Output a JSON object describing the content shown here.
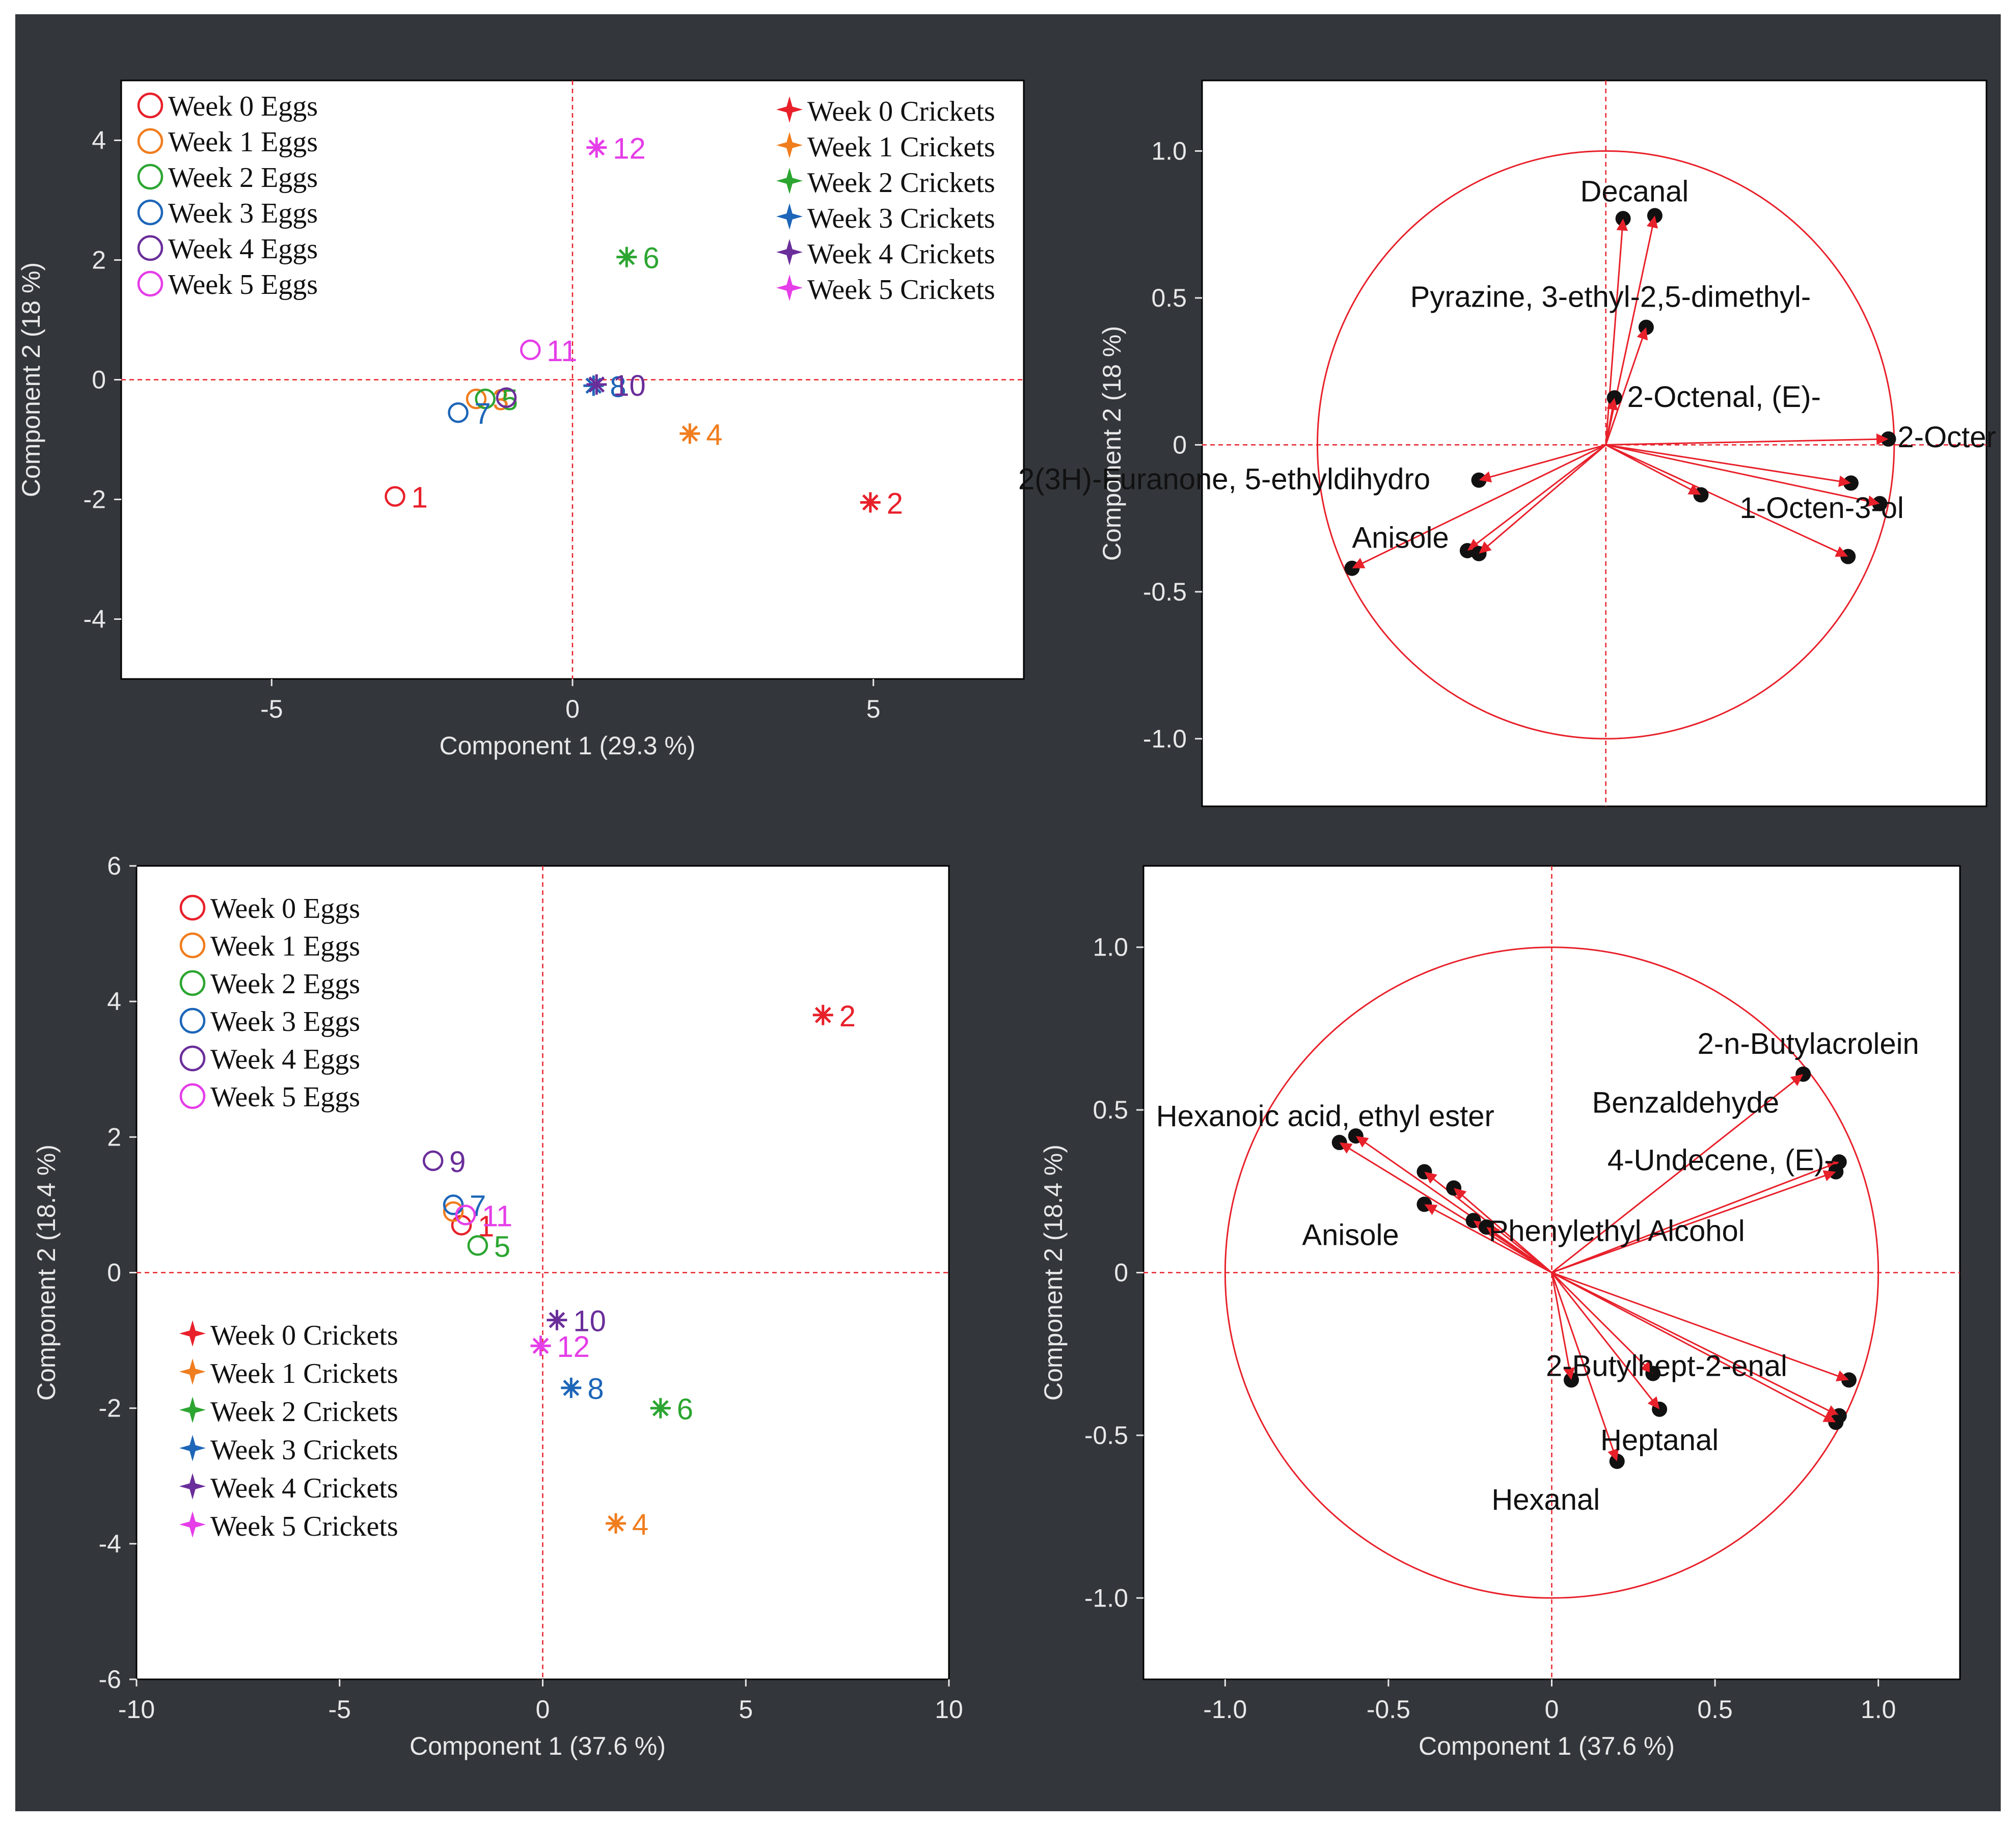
{
  "figure": {
    "background": "#33363b",
    "plot_background": "#ffffff",
    "reference_line_color": "#e8202a",
    "series_colors": {
      "week0": "#e8202a",
      "week1": "#f07d1e",
      "week2": "#2ca531",
      "week3": "#1d66b8",
      "week4": "#6a2e9a",
      "week5": "#e53de8"
    }
  },
  "chart_data": [
    {
      "id": "top-left",
      "type": "scatter",
      "title": "",
      "xlabel": "Component 1  (29.3 %)",
      "ylabel": "Component 2  (18 %)",
      "xlim": [
        -7.5,
        7.5
      ],
      "ylim": [
        -5,
        5
      ],
      "xticks": [
        -5,
        0,
        5
      ],
      "yticks": [
        -4,
        -2,
        0,
        2,
        4
      ],
      "grid": false,
      "reference_lines": {
        "x": 0,
        "y": 0
      },
      "legends": [
        {
          "position": "top-left",
          "marker": "circle",
          "entries": [
            {
              "label": "Week 0 Eggs",
              "series": "week0"
            },
            {
              "label": "Week 1 Eggs",
              "series": "week1"
            },
            {
              "label": "Week 2 Eggs",
              "series": "week2"
            },
            {
              "label": "Week 3 Eggs",
              "series": "week3"
            },
            {
              "label": "Week 4 Eggs",
              "series": "week4"
            },
            {
              "label": "Week 5 Eggs",
              "series": "week5"
            }
          ]
        },
        {
          "position": "top-right",
          "marker": "star",
          "entries": [
            {
              "label": "Week 0 Crickets",
              "series": "week0"
            },
            {
              "label": "Week 1 Crickets",
              "series": "week1"
            },
            {
              "label": "Week 2 Crickets",
              "series": "week2"
            },
            {
              "label": "Week 3 Crickets",
              "series": "week3"
            },
            {
              "label": "Week 4 Crickets",
              "series": "week4"
            },
            {
              "label": "Week 5 Crickets",
              "series": "week5"
            }
          ]
        }
      ],
      "points": [
        {
          "label": "1",
          "x": -2.95,
          "y": -1.95,
          "marker": "circle",
          "series": "week0"
        },
        {
          "label": "3",
          "x": -1.6,
          "y": -0.32,
          "marker": "circle",
          "series": "week1"
        },
        {
          "label": "5",
          "x": -1.45,
          "y": -0.32,
          "marker": "circle",
          "series": "week2"
        },
        {
          "label": "7",
          "x": -1.9,
          "y": -0.55,
          "marker": "circle",
          "series": "week3"
        },
        {
          "label": "9",
          "x": -1.1,
          "y": -0.3,
          "marker": "circle",
          "series": "week4",
          "show_label": false
        },
        {
          "label": "11",
          "x": -0.7,
          "y": 0.5,
          "marker": "circle",
          "series": "week5"
        },
        {
          "label": "2",
          "x": 4.95,
          "y": -2.05,
          "marker": "star",
          "series": "week0"
        },
        {
          "label": "4",
          "x": 1.95,
          "y": -0.9,
          "marker": "star",
          "series": "week1"
        },
        {
          "label": "6",
          "x": 0.9,
          "y": 2.05,
          "marker": "star",
          "series": "week2"
        },
        {
          "label": "8",
          "x": 0.35,
          "y": -0.1,
          "marker": "star",
          "series": "week3"
        },
        {
          "label": "10",
          "x": 0.4,
          "y": -0.08,
          "marker": "star",
          "series": "week4"
        },
        {
          "label": "12",
          "x": 0.4,
          "y": 3.88,
          "marker": "star",
          "series": "week5"
        }
      ]
    },
    {
      "id": "top-right",
      "type": "scatter",
      "title": "",
      "xlabel": "",
      "ylabel": "Component 2  (18 %)",
      "xlim": [
        -1.4,
        1.32
      ],
      "ylim": [
        -1.23,
        1.24
      ],
      "xticks": [],
      "yticks": [
        -1.0,
        -0.5,
        0,
        0.5,
        1.0
      ],
      "ytick_labels": [
        "-1.0",
        "-0.5",
        "0",
        "0.5",
        "1.0"
      ],
      "grid": false,
      "reference_lines": {
        "x": 0,
        "y": 0
      },
      "unit_circle": true,
      "loadings": [
        {
          "x": 0.06,
          "y": 0.77,
          "label": ""
        },
        {
          "x": 0.17,
          "y": 0.78,
          "label": "Decanal"
        },
        {
          "x": 0.14,
          "y": 0.4,
          "label": "Pyrazine, 3-ethyl-2,5-dimethyl-"
        },
        {
          "x": 0.03,
          "y": 0.16,
          "label": "2-Octenal, (E)-"
        },
        {
          "x": 0.98,
          "y": 0.02,
          "label": "2-Octer"
        },
        {
          "x": 0.85,
          "y": -0.13,
          "label": ""
        },
        {
          "x": 0.95,
          "y": -0.2,
          "label": "1-Octen-3-ol"
        },
        {
          "x": 0.84,
          "y": -0.38,
          "label": ""
        },
        {
          "x": 0.33,
          "y": -0.17,
          "label": ""
        },
        {
          "x": -0.44,
          "y": -0.12,
          "label": "2(3H)-Furanone, 5-ethyldihydro"
        },
        {
          "x": -0.48,
          "y": -0.36,
          "label": ""
        },
        {
          "x": -0.44,
          "y": -0.37,
          "label": ""
        },
        {
          "x": -0.88,
          "y": -0.42,
          "label": "Anisole"
        }
      ]
    },
    {
      "id": "bottom-left",
      "type": "scatter",
      "title": "",
      "xlabel": "Component 1  (37.6 %)",
      "ylabel": "Component 2  (18.4 %)",
      "xlim": [
        -10,
        10
      ],
      "ylim": [
        -6,
        6
      ],
      "xticks": [
        -10,
        -5,
        0,
        5,
        10
      ],
      "yticks": [
        -6,
        -4,
        -2,
        0,
        2,
        4,
        6
      ],
      "grid": false,
      "reference_lines": {
        "x": 0,
        "y": 0
      },
      "legends": [
        {
          "position": "top-left",
          "marker": "circle",
          "entries": [
            {
              "label": "Week 0 Eggs",
              "series": "week0"
            },
            {
              "label": "Week 1 Eggs",
              "series": "week1"
            },
            {
              "label": "Week 2 Eggs",
              "series": "week2"
            },
            {
              "label": "Week 3 Eggs",
              "series": "week3"
            },
            {
              "label": "Week 4 Eggs",
              "series": "week4"
            },
            {
              "label": "Week 5 Eggs",
              "series": "week5"
            }
          ]
        },
        {
          "position": "bottom-left",
          "marker": "star",
          "entries": [
            {
              "label": "Week 0 Crickets",
              "series": "week0"
            },
            {
              "label": "Week 1 Crickets",
              "series": "week1"
            },
            {
              "label": "Week 2 Crickets",
              "series": "week2"
            },
            {
              "label": "Week 3 Crickets",
              "series": "week3"
            },
            {
              "label": "Week 4 Crickets",
              "series": "week4"
            },
            {
              "label": "Week 5 Crickets",
              "series": "week5"
            }
          ]
        }
      ],
      "points": [
        {
          "label": "1",
          "x": -2.0,
          "y": 0.7,
          "marker": "circle",
          "series": "week0"
        },
        {
          "label": "3",
          "x": -2.2,
          "y": 0.9,
          "marker": "circle",
          "series": "week1",
          "show_label": false
        },
        {
          "label": "5",
          "x": -1.6,
          "y": 0.4,
          "marker": "circle",
          "series": "week2"
        },
        {
          "label": "7",
          "x": -2.2,
          "y": 1.0,
          "marker": "circle",
          "series": "week3"
        },
        {
          "label": "9",
          "x": -2.7,
          "y": 1.65,
          "marker": "circle",
          "series": "week4"
        },
        {
          "label": "11",
          "x": -1.9,
          "y": 0.85,
          "marker": "circle",
          "series": "week5"
        },
        {
          "label": "2",
          "x": 6.9,
          "y": 3.8,
          "marker": "star",
          "series": "week0"
        },
        {
          "label": "4",
          "x": 1.8,
          "y": -3.7,
          "marker": "star",
          "series": "week1"
        },
        {
          "label": "6",
          "x": 2.9,
          "y": -2.0,
          "marker": "star",
          "series": "week2"
        },
        {
          "label": "8",
          "x": 0.7,
          "y": -1.7,
          "marker": "star",
          "series": "week3"
        },
        {
          "label": "10",
          "x": 0.35,
          "y": -0.7,
          "marker": "star",
          "series": "week4"
        },
        {
          "label": "12",
          "x": -0.05,
          "y": -1.08,
          "marker": "star",
          "series": "week5"
        }
      ]
    },
    {
      "id": "bottom-right",
      "type": "scatter",
      "title": "",
      "xlabel": "Component 1  (37.6 %)",
      "ylabel": "Component 2  (18.4 %)",
      "xlim": [
        -1.25,
        1.25
      ],
      "ylim": [
        -1.25,
        1.25
      ],
      "xticks": [
        -1.0,
        -0.5,
        0,
        0.5,
        1.0
      ],
      "xtick_labels": [
        "-1.0",
        "-0.5",
        "0",
        "0.5",
        "1.0"
      ],
      "yticks": [
        -1.0,
        -0.5,
        0,
        0.5,
        1.0
      ],
      "ytick_labels": [
        "-1.0",
        "-0.5",
        "0",
        "0.5",
        "1.0"
      ],
      "grid": false,
      "reference_lines": {
        "x": 0,
        "y": 0
      },
      "unit_circle": true,
      "loadings": [
        {
          "x": 0.77,
          "y": 0.61,
          "label": "2-n-Butylacrolein"
        },
        {
          "x": 0.88,
          "y": 0.34,
          "label": "4-Undecene, (E)-"
        },
        {
          "x": 0.87,
          "y": 0.31,
          "label": ""
        },
        {
          "x": -0.65,
          "y": 0.4,
          "label": "Hexanoic acid, ethyl ester"
        },
        {
          "x": -0.6,
          "y": 0.42,
          "label": ""
        },
        {
          "x": -0.39,
          "y": 0.31,
          "label": ""
        },
        {
          "x": -0.3,
          "y": 0.26,
          "label": ""
        },
        {
          "x": -0.39,
          "y": 0.21,
          "label": "Anisole"
        },
        {
          "x": -0.24,
          "y": 0.16,
          "label": "Phenylethyl Alcohol"
        },
        {
          "x": -0.2,
          "y": 0.14,
          "label": ""
        },
        {
          "x": 0.06,
          "y": -0.33,
          "label": "2-Butylhept-2-enal"
        },
        {
          "x": 0.31,
          "y": -0.31,
          "label": ""
        },
        {
          "x": 0.33,
          "y": -0.42,
          "label": "Heptanal"
        },
        {
          "x": 0.2,
          "y": -0.58,
          "label": "Hexanal"
        },
        {
          "x": 0.91,
          "y": -0.33,
          "label": ""
        },
        {
          "x": 0.88,
          "y": -0.44,
          "label": ""
        },
        {
          "x": 0.87,
          "y": -0.46,
          "label": ""
        }
      ],
      "annotations": [
        {
          "text": "Benzaldehyde",
          "x": 0.41,
          "y": 0.52
        }
      ]
    }
  ]
}
